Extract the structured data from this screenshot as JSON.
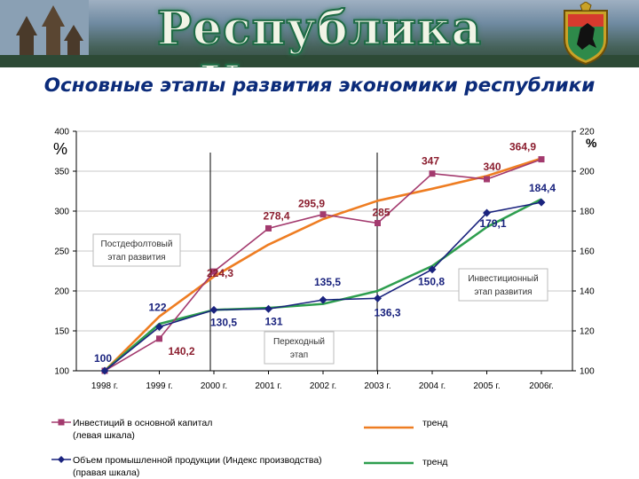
{
  "banner": {
    "title": "Республика Карелия"
  },
  "page": {
    "subtitle": "Основные этапы развития экономики республики"
  },
  "chart_data": {
    "type": "line",
    "categories": [
      "1998 г.",
      "1999 г.",
      "2000 г.",
      "2001 г.",
      "2002 г.",
      "2003 г.",
      "2004 г.",
      "2005 г.",
      "2006г."
    ],
    "left_axis": {
      "unit": "%",
      "ylim": [
        100,
        400
      ],
      "ticks": [
        100,
        150,
        200,
        250,
        300,
        350,
        400
      ]
    },
    "right_axis": {
      "unit": "%",
      "ylim": [
        100,
        220
      ],
      "ticks": [
        100,
        120,
        140,
        160,
        180,
        200,
        220
      ]
    },
    "series": [
      {
        "name": "Инвестиций в основной капитал (левая шкала)",
        "axis": "left",
        "color": "#a33a6e",
        "marker": "square",
        "values": [
          100,
          140.2,
          224.3,
          278.4,
          295.9,
          285,
          347,
          340,
          364.9
        ],
        "labels": [
          "",
          "140,2",
          "224,3",
          "278,4",
          "295,9",
          "285",
          "347",
          "340",
          "364,9"
        ]
      },
      {
        "name": "Объем промышленной продукции (Индекс производства) (правая шкала)",
        "axis": "right",
        "color": "#1a237e",
        "marker": "diamond",
        "values": [
          100,
          122,
          130.5,
          131,
          135.5,
          136.3,
          150.8,
          179.1,
          184.4
        ],
        "labels": [
          "100",
          "122",
          "130,5",
          "131",
          "135,5",
          "136,3",
          "150,8",
          "179,1",
          "184,4"
        ]
      }
    ],
    "trends": [
      {
        "name": "тренд",
        "color": "#ee7d22",
        "of_axis": "left",
        "values": [
          100,
          168,
          218,
          258,
          290,
          313,
          328,
          344,
          366
        ]
      },
      {
        "name": "тренд",
        "color": "#2e9e4f",
        "of_axis": "right",
        "values": [
          100,
          123.5,
          130.5,
          131.5,
          133.5,
          140,
          152.5,
          172,
          186
        ]
      }
    ],
    "stages": [
      {
        "text": "Постдефолтовый этап развития"
      },
      {
        "text": "Переходный этап"
      },
      {
        "text": "Инвестиционный этап развития"
      }
    ],
    "legend": {
      "investments": [
        "Инвестиций в основной капитал",
        "(левая шкала)"
      ],
      "production": [
        "Объем  промышленной продукции (Индекс производства)",
        "(правая шкала)"
      ],
      "trend_label": "тренд"
    }
  }
}
